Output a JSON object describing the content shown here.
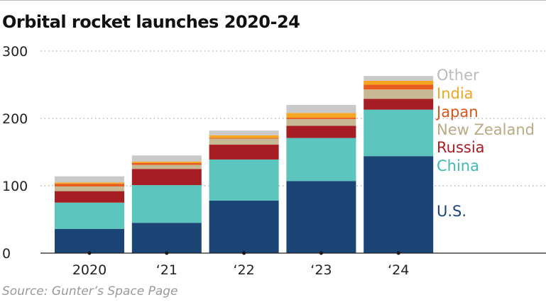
{
  "chart_data": {
    "type": "bar",
    "stacked": true,
    "title": "Orbital rocket launches 2020-24",
    "source": "Source: Gunter’s Space Page",
    "categories": [
      "2020",
      "‘21",
      "‘22",
      "‘23",
      "‘24"
    ],
    "ylim": [
      0,
      300
    ],
    "yticks": [
      "0",
      "100",
      "200",
      "300"
    ],
    "grid": "horizontal dotted",
    "legend": "right, labels beside last bar",
    "series": [
      {
        "name": "U.S.",
        "color": "#1b4575",
        "values": [
          36,
          45,
          78,
          107,
          144
        ]
      },
      {
        "name": "China",
        "color": "#5bc5be",
        "values": [
          39,
          56,
          61,
          64,
          69
        ]
      },
      {
        "name": "Russia",
        "color": "#a61d23",
        "values": [
          17,
          24,
          22,
          18,
          16
        ]
      },
      {
        "name": "New Zealand",
        "color": "#c7b994",
        "values": [
          7,
          6,
          9,
          10,
          14
        ]
      },
      {
        "name": "Japan",
        "color": "#e95c20",
        "values": [
          4,
          3,
          1,
          2,
          7
        ]
      },
      {
        "name": "India",
        "color": "#f6a623",
        "values": [
          2,
          2,
          4,
          7,
          6
        ]
      },
      {
        "name": "Other",
        "color": "#c9c9c9",
        "values": [
          9,
          9,
          7,
          12,
          7
        ]
      }
    ]
  }
}
